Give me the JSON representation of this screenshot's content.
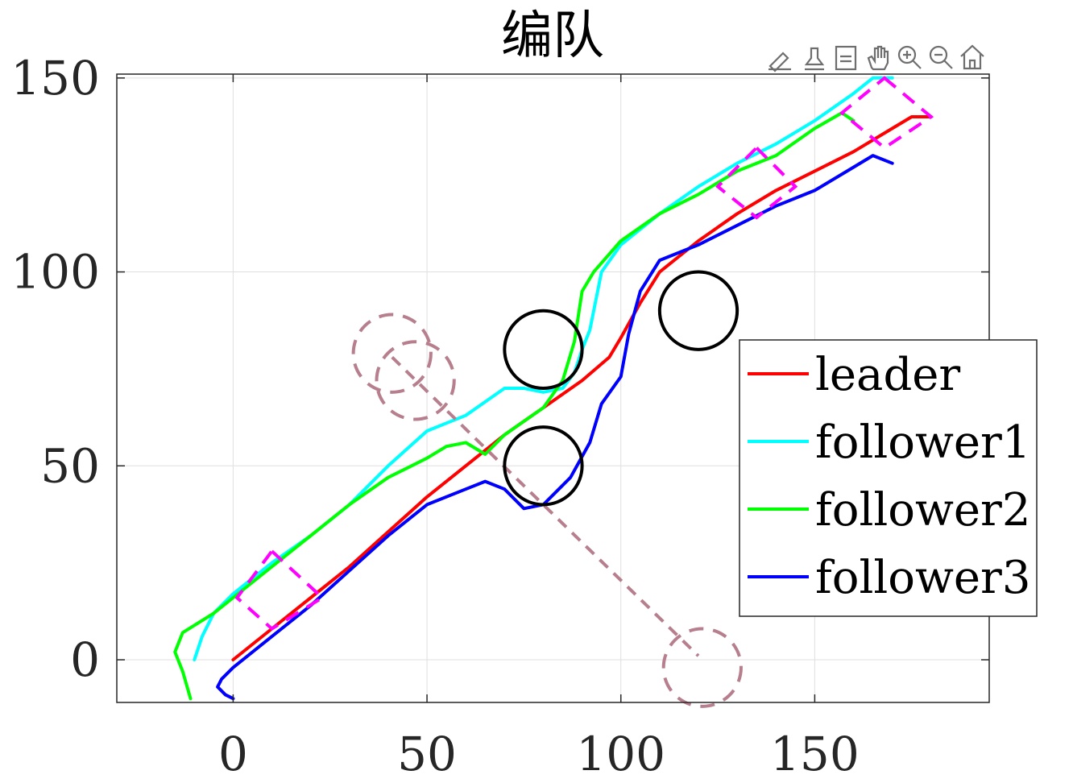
{
  "chart_data": {
    "type": "line",
    "title": "编队",
    "xlabel": "",
    "ylabel": "",
    "xlim": [
      -30,
      195
    ],
    "ylim": [
      -11,
      151
    ],
    "xticks": [
      0,
      50,
      100,
      150
    ],
    "yticks": [
      0,
      50,
      100,
      150
    ],
    "grid": true,
    "legend_position": "right",
    "series": [
      {
        "name": "leader",
        "color": "#ff0000",
        "x": [
          0,
          10,
          20,
          30,
          40,
          50,
          60,
          70,
          80,
          90,
          97,
          100,
          105,
          110,
          120,
          130,
          140,
          150,
          160,
          170,
          175,
          180
        ],
        "y": [
          0,
          8,
          16,
          24,
          33,
          42,
          50,
          58,
          65,
          72,
          78,
          83,
          92,
          100,
          108,
          115,
          121,
          126,
          131,
          137,
          140,
          140
        ]
      },
      {
        "name": "follower1",
        "color": "#00ffff",
        "x": [
          -10,
          -8,
          -5,
          0,
          10,
          20,
          30,
          40,
          50,
          55,
          60,
          70,
          75,
          80,
          85,
          88,
          90,
          92,
          95,
          100,
          110,
          120,
          130,
          140,
          150,
          160,
          165,
          170
        ],
        "y": [
          0,
          6,
          12,
          17,
          25,
          32,
          40,
          50,
          59,
          61,
          63,
          70,
          70,
          69,
          70,
          74,
          80,
          85,
          100,
          107,
          115,
          122,
          128,
          133,
          139,
          146,
          150,
          150
        ]
      },
      {
        "name": "follower2",
        "color": "#00ff00",
        "x": [
          -11,
          -13,
          -15,
          -13,
          -5,
          0,
          10,
          20,
          30,
          40,
          50,
          55,
          60,
          65,
          70,
          80,
          85,
          88,
          90,
          93,
          100,
          110,
          120,
          130,
          140,
          150,
          157,
          160
        ],
        "y": [
          -10,
          -3,
          2,
          7,
          12,
          16,
          24,
          32,
          40,
          47,
          52,
          55,
          56,
          53,
          58,
          65,
          72,
          82,
          95,
          100,
          108,
          115,
          120,
          126,
          130,
          137,
          141,
          139
        ]
      },
      {
        "name": "follower3",
        "color": "#0000ff",
        "x": [
          0,
          -2,
          -4,
          -3,
          0,
          10,
          20,
          30,
          40,
          50,
          60,
          65,
          70,
          75,
          80,
          87,
          92,
          95,
          100,
          102,
          105,
          110,
          120,
          130,
          140,
          150,
          160,
          165,
          170
        ],
        "y": [
          -10,
          -9,
          -7,
          -5,
          -2,
          6,
          14,
          23,
          32,
          40,
          44,
          46,
          44,
          39,
          40,
          47,
          56,
          66,
          73,
          84,
          95,
          103,
          107,
          112,
          117,
          121,
          127,
          130,
          128
        ]
      }
    ],
    "formation_boxes": [
      [
        [
          10,
          28
        ],
        [
          23,
          16
        ],
        [
          10,
          8
        ],
        [
          1,
          16
        ]
      ],
      [
        [
          135,
          132
        ],
        [
          145,
          122
        ],
        [
          135,
          114
        ],
        [
          125,
          122
        ]
      ],
      [
        [
          168,
          150
        ],
        [
          180,
          140
        ],
        [
          168,
          132
        ],
        [
          157,
          141
        ]
      ]
    ],
    "static_obstacles": [
      {
        "x": 80,
        "y": 80,
        "r": 10
      },
      {
        "x": 80,
        "y": 50,
        "r": 10
      },
      {
        "x": 120,
        "y": 90,
        "r": 10
      }
    ],
    "moving_obstacle": {
      "path": [
        [
          41,
          78
        ],
        [
          120,
          1
        ]
      ],
      "circles": [
        {
          "x": 41,
          "y": 79,
          "r": 10
        },
        {
          "x": 47,
          "y": 72,
          "r": 10
        },
        {
          "x": 121,
          "y": -2,
          "r": 10
        }
      ],
      "color": "#b77f8e"
    },
    "box_color": "#ff00ff"
  },
  "legend_entries": [
    "leader",
    "follower1",
    "follower2",
    "follower3"
  ],
  "toolbar": {
    "icons": [
      "brush-icon",
      "data-tip-icon",
      "export-icon",
      "pan-icon",
      "zoom-in-icon",
      "zoom-out-icon",
      "home-icon"
    ]
  }
}
